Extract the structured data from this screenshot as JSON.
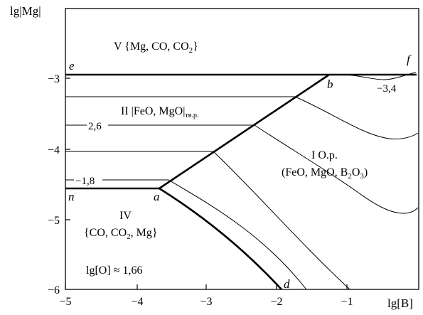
{
  "axes": {
    "ylabel": "lg|Mg|",
    "xlabel": "lg[B]",
    "x_ticks": [
      "−5",
      "−4",
      "−3",
      "−2",
      "−1"
    ],
    "y_ticks": [
      "−3",
      "−4",
      "−5",
      "−6"
    ],
    "x_range": [
      -5,
      -0.1
    ],
    "y_range": [
      -6,
      -2.05
    ]
  },
  "regions": {
    "v": "V  {Mg, CO, CO",
    "v_sub": "2",
    "v_end": "}",
    "ii": "II  |FeO, MgO|",
    "ii_sub": "тв.р.",
    "i_line1": "I  O.p.",
    "i_line2": "(FeO, MgO, B",
    "i_line2_sub": "2",
    "i_line2_mid": "O",
    "i_line2_sub2": "3",
    "i_line2_end": ")",
    "iv_line1": "IV",
    "iv_line2": "{CO, CO",
    "iv_line2_sub": "2",
    "iv_line2_end": ", Mg}"
  },
  "points": {
    "e": "e",
    "f": "f",
    "b": "b",
    "a": "a",
    "n": "n",
    "d": "d"
  },
  "isolines": {
    "val_2_6": "2,6",
    "val_1_8": "−1,8",
    "val_3_4": "−3,4"
  },
  "condition": {
    "text": "lg[O] ≈  1,66"
  },
  "chart_data": {
    "type": "line",
    "xlabel": "lg[B]",
    "ylabel": "lg|Mg|",
    "xlim": [
      -5,
      -0.1
    ],
    "ylim": [
      -6,
      -2.05
    ],
    "series": [
      {
        "x": [
          -5,
          -0.1
        ],
        "y": [
          -2.97,
          -2.97
        ]
      },
      {
        "x": [
          -3.65,
          -1.25
        ],
        "y": [
          -4.55,
          -2.97
        ]
      },
      {
        "x": [
          -5,
          -3.65
        ],
        "y": [
          -4.55,
          -4.55
        ]
      },
      {
        "x": [
          -3.65,
          -3.0,
          -2.5,
          -2.1,
          -1.95
        ],
        "y": [
          -4.55,
          -4.95,
          -5.4,
          -5.8,
          -6.0
        ]
      },
      {
        "x": [
          -5,
          -1.3
        ],
        "y": [
          -3.27,
          -3.27
        ]
      },
      {
        "x": [
          -1.3,
          -1.0,
          -0.7,
          -0.5,
          -0.3,
          -0.1
        ],
        "y": [
          -3.27,
          -3.5,
          -3.7,
          -3.8,
          -3.82,
          -3.7
        ]
      },
      {
        "x": [
          -5,
          -2.3
        ],
        "y": [
          -3.67,
          -3.67
        ]
      },
      {
        "x": [
          -2.3,
          -1.8,
          -1.3,
          -0.9,
          -0.5,
          -0.3,
          -0.1
        ],
        "y": [
          -3.67,
          -4.0,
          -4.3,
          -4.6,
          -4.85,
          -4.9,
          -4.8
        ]
      },
      {
        "x": [
          -5,
          -2.9
        ],
        "y": [
          -4.04,
          -4.04
        ]
      },
      {
        "x": [
          -2.9,
          -2.5,
          -2.0,
          -1.5,
          -1.0,
          -0.6
        ],
        "y": [
          -4.04,
          -4.4,
          -4.9,
          -5.4,
          -5.85,
          -6.0
        ]
      },
      {
        "x": [
          -5,
          -3.5
        ],
        "y": [
          -4.42,
          -4.42
        ]
      },
      {
        "x": [
          -3.5,
          -3.0,
          -2.5,
          -2.0,
          -1.6
        ],
        "y": [
          -4.42,
          -4.75,
          -5.15,
          -5.6,
          -6.0
        ]
      },
      {
        "x": [
          -1.25,
          -1.0,
          -0.8,
          -0.6,
          -0.4,
          -0.25,
          -0.1
        ],
        "y": [
          -2.97,
          -2.97,
          -2.99,
          -3.04,
          -3.06,
          -3.02,
          -2.97
        ]
      }
    ],
    "annotations": [
      "2,6",
      "−1,8",
      "−3,4",
      "lg[O] ≈  1,66"
    ]
  }
}
